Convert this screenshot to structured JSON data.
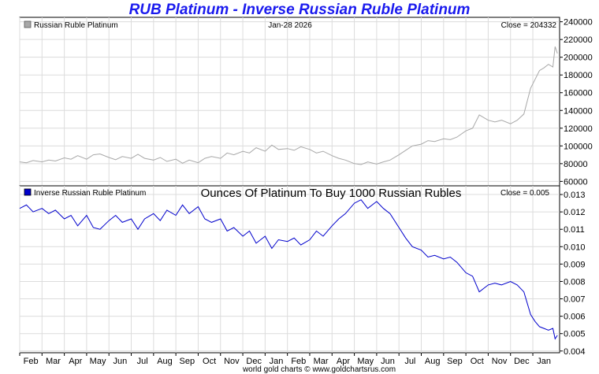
{
  "page": {
    "title": "RUB Platinum - Inverse Russian Ruble Platinum",
    "date": "Jan-28  2026",
    "credit": "world gold charts © www.goldchartsrus.com"
  },
  "colors": {
    "title": "#1a1aee",
    "series_top": "#a8a8a8",
    "series_bottom": "#0000cc",
    "grid": "#dcdcdc"
  },
  "chart_data": [
    {
      "type": "line",
      "title": "RUB Platinum",
      "legend": "Russian Ruble Platinum",
      "close_label": "Close = 204332",
      "ylim": [
        55000,
        245000
      ],
      "yticks": [
        60000,
        80000,
        100000,
        120000,
        140000,
        160000,
        180000,
        200000,
        220000,
        240000
      ],
      "ytick_labels": [
        "60000",
        "80000",
        "100000",
        "120000",
        "140000",
        "160000",
        "180000",
        "200000",
        "220000",
        "240000"
      ],
      "x_months": [
        "Feb",
        "Mar",
        "Apr",
        "May",
        "Jun",
        "Jul",
        "Aug",
        "Sep",
        "Oct",
        "Nov",
        "Dec",
        "Jan",
        "Feb",
        "Mar",
        "Apr",
        "May",
        "Jun",
        "Jul",
        "Aug",
        "Sep",
        "Oct",
        "Nov",
        "Dec",
        "Jan"
      ],
      "x_range": [
        0,
        24.2
      ],
      "series": [
        {
          "name": "Russian Ruble Platinum",
          "x": [
            0,
            0.3,
            0.6,
            1.0,
            1.3,
            1.6,
            2.0,
            2.3,
            2.6,
            3.0,
            3.3,
            3.6,
            4.0,
            4.3,
            4.6,
            5.0,
            5.3,
            5.6,
            6.0,
            6.3,
            6.6,
            7.0,
            7.3,
            7.6,
            8.0,
            8.3,
            8.6,
            9.0,
            9.3,
            9.6,
            10.0,
            10.3,
            10.6,
            11.0,
            11.3,
            11.6,
            12.0,
            12.3,
            12.6,
            13.0,
            13.3,
            13.6,
            14.0,
            14.3,
            14.6,
            15.0,
            15.3,
            15.6,
            16.0,
            16.3,
            16.6,
            17.0,
            17.3,
            17.6,
            18.0,
            18.3,
            18.6,
            19.0,
            19.3,
            19.6,
            20.0,
            20.3,
            20.6,
            21.0,
            21.3,
            21.6,
            22.0,
            22.3,
            22.6,
            22.9,
            23.1,
            23.3,
            23.5,
            23.7,
            23.9,
            24.0,
            24.1
          ],
          "values": [
            82000,
            81000,
            83500,
            82000,
            84000,
            83000,
            86500,
            85000,
            89000,
            85000,
            90000,
            91000,
            87000,
            84500,
            88000,
            86000,
            90500,
            86000,
            84000,
            87000,
            82500,
            85000,
            80500,
            84000,
            81000,
            86000,
            88000,
            86000,
            92000,
            90000,
            94000,
            92000,
            98000,
            94000,
            101000,
            96000,
            97000,
            95000,
            99000,
            96000,
            92000,
            94000,
            89000,
            86000,
            84000,
            80000,
            79000,
            82000,
            79500,
            82000,
            84000,
            90000,
            95000,
            100000,
            102000,
            106000,
            105000,
            108000,
            107000,
            110000,
            117000,
            120000,
            135000,
            129000,
            127000,
            129000,
            125000,
            129000,
            136000,
            165000,
            175000,
            185000,
            188000,
            192000,
            189000,
            212000,
            204332
          ]
        }
      ]
    },
    {
      "type": "line",
      "title": "Ounces Of Platinum To Buy 1000 Russian Rubles",
      "legend": "Inverse Russian Ruble Platinum",
      "close_label": "Close = 0.005",
      "ylim": [
        0.0039,
        0.0135
      ],
      "yticks": [
        0.004,
        0.005,
        0.006,
        0.007,
        0.008,
        0.009,
        0.01,
        0.011,
        0.012,
        0.013
      ],
      "ytick_labels": [
        "0.004",
        "0.005",
        "0.006",
        "0.007",
        "0.008",
        "0.009",
        "0.010",
        "0.011",
        "0.012",
        "0.013"
      ],
      "x_range": [
        0,
        24.2
      ],
      "series": [
        {
          "name": "Inverse Russian Ruble Platinum",
          "x": [
            0,
            0.3,
            0.6,
            1.0,
            1.3,
            1.6,
            2.0,
            2.3,
            2.6,
            3.0,
            3.3,
            3.6,
            4.0,
            4.3,
            4.6,
            5.0,
            5.3,
            5.6,
            6.0,
            6.3,
            6.6,
            7.0,
            7.3,
            7.6,
            8.0,
            8.3,
            8.6,
            9.0,
            9.3,
            9.6,
            10.0,
            10.3,
            10.6,
            11.0,
            11.3,
            11.6,
            12.0,
            12.3,
            12.6,
            13.0,
            13.3,
            13.6,
            14.0,
            14.3,
            14.6,
            15.0,
            15.3,
            15.6,
            16.0,
            16.3,
            16.6,
            17.0,
            17.3,
            17.6,
            18.0,
            18.3,
            18.6,
            19.0,
            19.3,
            19.6,
            20.0,
            20.3,
            20.6,
            21.0,
            21.3,
            21.6,
            22.0,
            22.3,
            22.6,
            22.9,
            23.1,
            23.3,
            23.5,
            23.7,
            23.9,
            24.0,
            24.1
          ],
          "values": [
            0.0122,
            0.0124,
            0.012,
            0.0122,
            0.0119,
            0.0121,
            0.0116,
            0.0118,
            0.0112,
            0.0118,
            0.0111,
            0.011,
            0.0115,
            0.0118,
            0.0114,
            0.0116,
            0.011,
            0.0116,
            0.0119,
            0.0115,
            0.0121,
            0.0118,
            0.0124,
            0.0119,
            0.0123,
            0.0116,
            0.0114,
            0.0116,
            0.0109,
            0.0111,
            0.0106,
            0.0109,
            0.0102,
            0.0106,
            0.0099,
            0.0104,
            0.0103,
            0.0105,
            0.0101,
            0.0104,
            0.0109,
            0.0106,
            0.0112,
            0.0116,
            0.0119,
            0.0125,
            0.0127,
            0.0122,
            0.0126,
            0.0122,
            0.0119,
            0.0111,
            0.0105,
            0.01,
            0.0098,
            0.0094,
            0.0095,
            0.0093,
            0.0094,
            0.0091,
            0.0085,
            0.0083,
            0.0074,
            0.0078,
            0.0079,
            0.0078,
            0.008,
            0.0078,
            0.0074,
            0.0061,
            0.0057,
            0.0054,
            0.0053,
            0.0052,
            0.0053,
            0.0047,
            0.0049
          ]
        }
      ]
    }
  ]
}
